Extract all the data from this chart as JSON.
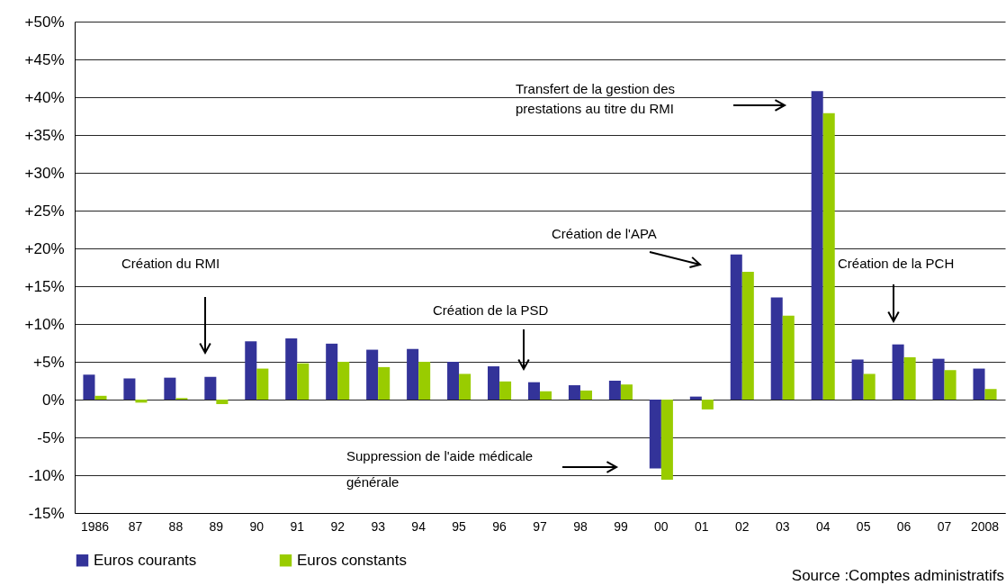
{
  "chart_data": {
    "type": "bar",
    "categories": [
      "1986",
      "87",
      "88",
      "89",
      "90",
      "91",
      "92",
      "93",
      "94",
      "95",
      "96",
      "97",
      "98",
      "99",
      "00",
      "01",
      "02",
      "03",
      "04",
      "05",
      "06",
      "07",
      "2008"
    ],
    "series": [
      {
        "name": "Euros courants",
        "color": "#333399",
        "values": [
          3.3,
          2.8,
          2.9,
          3.0,
          7.7,
          8.1,
          7.4,
          6.6,
          6.7,
          5.0,
          4.4,
          2.3,
          1.9,
          2.5,
          -9.1,
          0.4,
          19.2,
          13.5,
          40.8,
          5.3,
          7.3,
          5.4,
          4.1
        ]
      },
      {
        "name": "Euros constants",
        "color": "#99cc00",
        "values": [
          0.5,
          -0.4,
          0.2,
          -0.6,
          4.1,
          4.8,
          5.0,
          4.3,
          5.0,
          3.4,
          2.4,
          1.1,
          1.2,
          2.0,
          -10.6,
          -1.3,
          16.9,
          11.1,
          37.9,
          3.4,
          5.6,
          3.9,
          1.4
        ]
      }
    ],
    "ylim": [
      -15,
      50
    ],
    "yticks": [
      {
        "value": -15,
        "label": "-15%"
      },
      {
        "value": -10,
        "label": "-10%"
      },
      {
        "value": -5,
        "label": "-5%"
      },
      {
        "value": 0,
        "label": "0%"
      },
      {
        "value": 5,
        "label": "+5%"
      },
      {
        "value": 10,
        "label": "+10%"
      },
      {
        "value": 15,
        "label": "+15%"
      },
      {
        "value": 20,
        "label": "+20%"
      },
      {
        "value": 25,
        "label": "+25%"
      },
      {
        "value": 30,
        "label": "+30%"
      },
      {
        "value": 35,
        "label": "+35%"
      },
      {
        "value": 40,
        "label": "+40%"
      },
      {
        "value": 45,
        "label": "+45%"
      },
      {
        "value": 50,
        "label": "+50%"
      }
    ],
    "grid": "y",
    "legend": "bottom",
    "annotations": [
      "Création du RMI",
      "Création de la PSD",
      "Création de l'APA",
      "Transfert de la gestion des prestations au titre du RMI",
      "Création de la PCH",
      "Suppression de l'aide médicale générale",
      "Source :Comptes administratifs"
    ]
  }
}
